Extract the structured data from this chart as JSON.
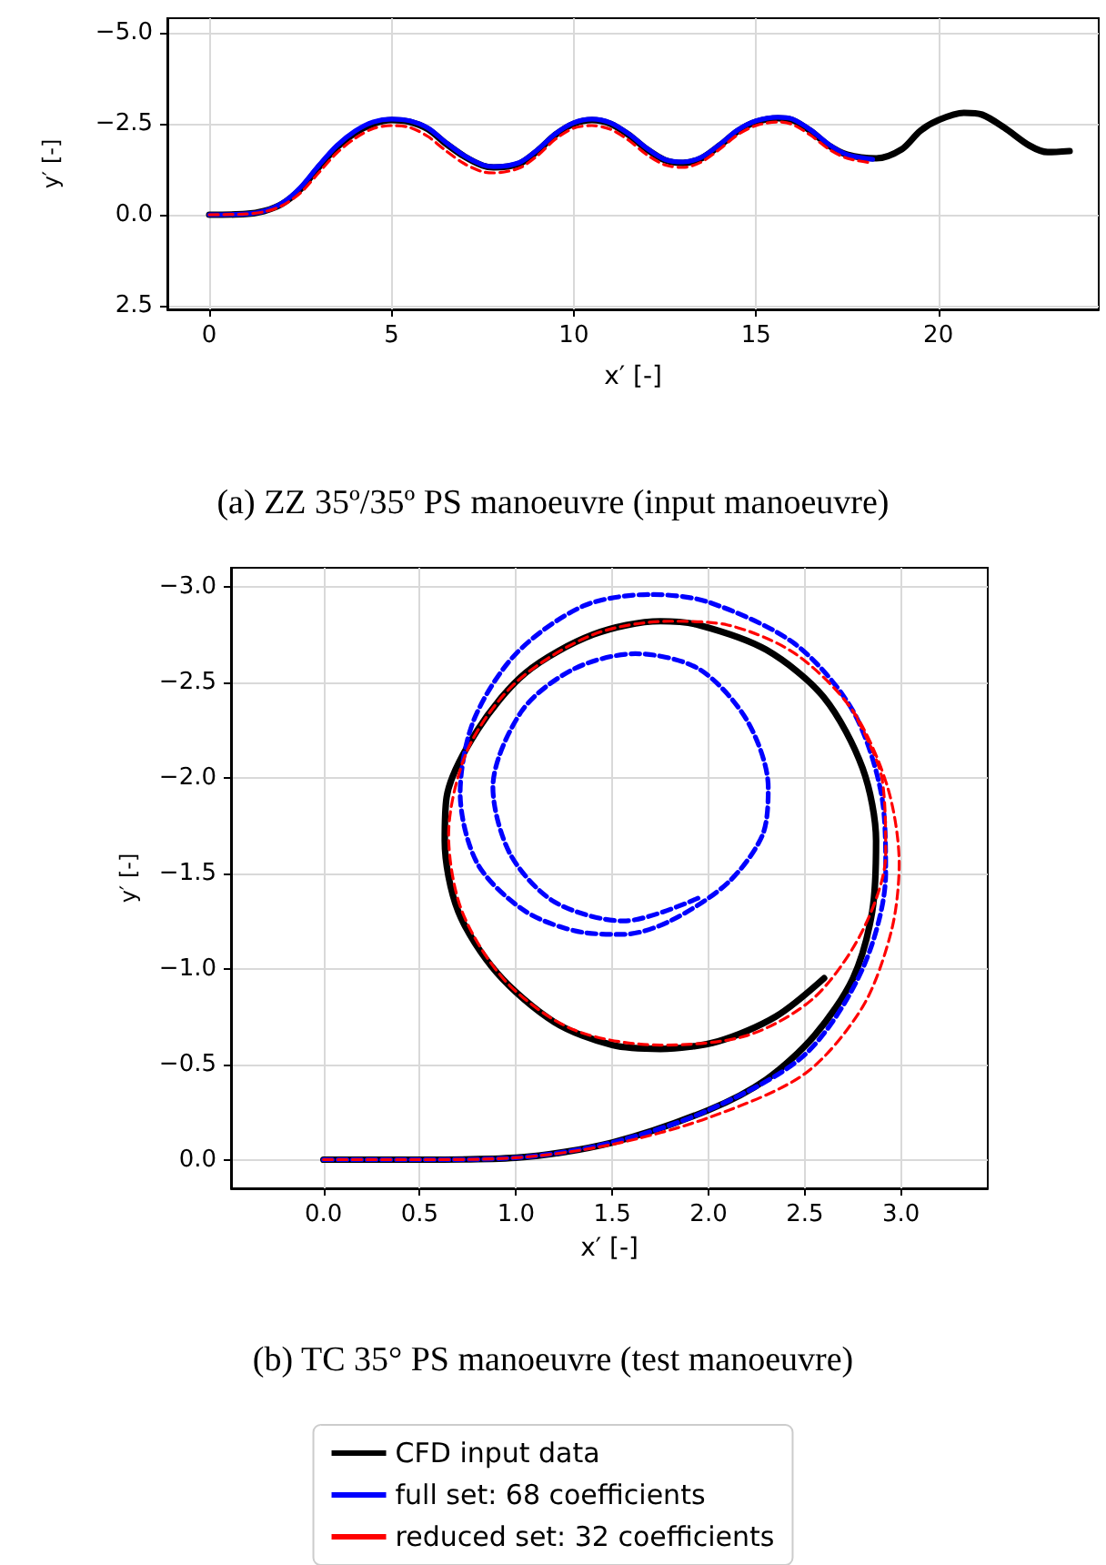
{
  "chart_data": [
    {
      "type": "line",
      "title": "(a) ZZ 35º/35º PS manoeuvre (input manoeuvre)",
      "xlabel": "x′ [-]",
      "ylabel": "y′ [-]",
      "xlim": [
        -1.15,
        24.4
      ],
      "ylim": [
        2.6,
        -5.4
      ],
      "xticks": [
        0,
        5,
        10,
        15,
        20
      ],
      "yticks": [
        {
          "value": 2.5,
          "label": "2.5"
        },
        {
          "value": 0,
          "label": "0.0"
        },
        {
          "value": -2.5,
          "label": "−2.5"
        },
        {
          "value": -5,
          "label": "−5.0"
        }
      ],
      "grid": true,
      "legend": false,
      "series": [
        {
          "color": "#000000",
          "line_style": "solid",
          "x": [
            0,
            1,
            1.5,
            2,
            2.5,
            3,
            3.5,
            4,
            4.5,
            5,
            5.5,
            6,
            6.5,
            7,
            7.5,
            7.8,
            8.5,
            9,
            9.5,
            10,
            10.5,
            11,
            11.5,
            12,
            12.5,
            13,
            13.5,
            14,
            14.5,
            15,
            15.6,
            16,
            16.5,
            17,
            17.5,
            18.3,
            19,
            19.5,
            20,
            20.7,
            21.2,
            21.8,
            22.5,
            23,
            23.6
          ],
          "values": [
            0,
            -0.02,
            -0.1,
            -0.3,
            -0.7,
            -1.3,
            -1.85,
            -2.25,
            -2.5,
            -2.6,
            -2.55,
            -2.35,
            -1.95,
            -1.6,
            -1.35,
            -1.3,
            -1.4,
            -1.75,
            -2.2,
            -2.5,
            -2.6,
            -2.5,
            -2.2,
            -1.8,
            -1.5,
            -1.42,
            -1.55,
            -1.9,
            -2.3,
            -2.55,
            -2.65,
            -2.6,
            -2.3,
            -1.9,
            -1.65,
            -1.55,
            -1.8,
            -2.3,
            -2.6,
            -2.8,
            -2.75,
            -2.4,
            -1.9,
            -1.72,
            -1.75
          ]
        },
        {
          "color": "#0000ff",
          "line_style": "solid",
          "x": [
            0,
            1,
            1.5,
            2,
            2.5,
            3,
            3.5,
            4,
            4.5,
            5,
            5.5,
            6,
            6.5,
            7,
            7.5,
            7.8,
            8.5,
            9,
            9.5,
            10,
            10.5,
            11,
            11.5,
            12,
            12.5,
            13,
            13.5,
            14,
            14.5,
            15,
            15.6,
            16,
            16.5,
            17,
            17.5,
            18.2
          ],
          "values": [
            0,
            -0.02,
            -0.1,
            -0.32,
            -0.75,
            -1.35,
            -1.9,
            -2.3,
            -2.55,
            -2.63,
            -2.58,
            -2.38,
            -1.98,
            -1.62,
            -1.37,
            -1.32,
            -1.43,
            -1.78,
            -2.23,
            -2.53,
            -2.63,
            -2.53,
            -2.23,
            -1.83,
            -1.52,
            -1.45,
            -1.58,
            -1.93,
            -2.33,
            -2.58,
            -2.68,
            -2.63,
            -2.33,
            -1.93,
            -1.65,
            -1.52
          ]
        },
        {
          "color": "#ff0000",
          "line_style": "dashed",
          "x": [
            0,
            1,
            1.5,
            2,
            2.5,
            3,
            3.5,
            4,
            4.5,
            5,
            5.5,
            6,
            6.5,
            7,
            7.5,
            7.8,
            8.5,
            9,
            9.5,
            10,
            10.5,
            11,
            11.5,
            12,
            12.5,
            13,
            13.5,
            14,
            14.5,
            15,
            15.6,
            16,
            16.5,
            17,
            17.5,
            18.2
          ],
          "values": [
            0,
            -0.02,
            -0.08,
            -0.25,
            -0.6,
            -1.15,
            -1.7,
            -2.1,
            -2.37,
            -2.45,
            -2.4,
            -2.15,
            -1.75,
            -1.4,
            -1.18,
            -1.15,
            -1.28,
            -1.62,
            -2.08,
            -2.38,
            -2.45,
            -2.35,
            -2.05,
            -1.65,
            -1.37,
            -1.3,
            -1.45,
            -1.8,
            -2.2,
            -2.45,
            -2.55,
            -2.48,
            -2.18,
            -1.8,
            -1.55,
            -1.42
          ]
        }
      ]
    },
    {
      "type": "line",
      "title": "(b) TC 35° PS manoeuvre (test manoeuvre)",
      "xlabel": "x′ [-]",
      "ylabel": "y′ [-]",
      "xlim": [
        -0.48,
        3.45
      ],
      "ylim": [
        0.15,
        -3.1
      ],
      "xticks": [
        {
          "value": 0,
          "label": "0.0"
        },
        {
          "value": 0.5,
          "label": "0.5"
        },
        {
          "value": 1,
          "label": "1.0"
        },
        {
          "value": 1.5,
          "label": "1.5"
        },
        {
          "value": 2,
          "label": "2.0"
        },
        {
          "value": 2.5,
          "label": "2.5"
        },
        {
          "value": 3,
          "label": "3.0"
        }
      ],
      "yticks": [
        {
          "value": 0,
          "label": "0.0"
        },
        {
          "value": -0.5,
          "label": "−0.5"
        },
        {
          "value": -1,
          "label": "−1.0"
        },
        {
          "value": -1.5,
          "label": "−1.5"
        },
        {
          "value": -2,
          "label": "−2.0"
        },
        {
          "value": -2.5,
          "label": "−2.5"
        },
        {
          "value": -3,
          "label": "−3.0"
        }
      ],
      "grid": true,
      "legend": "bottom",
      "series": [
        {
          "name": "CFD input data",
          "color": "#000000",
          "line_style": "solid",
          "x": [
            0,
            0.5,
            1,
            1.5,
            2,
            2.3,
            2.55,
            2.75,
            2.85,
            2.87,
            2.8,
            2.6,
            2.3,
            1.95,
            1.75,
            1.4,
            1.05,
            0.8,
            0.64,
            0.63,
            0.7,
            0.9,
            1.2,
            1.5,
            1.75,
            2.05,
            2.35,
            2.6
          ],
          "values": [
            0,
            0,
            -0.01,
            -0.09,
            -0.26,
            -0.42,
            -0.65,
            -0.95,
            -1.3,
            -1.67,
            -2.05,
            -2.42,
            -2.67,
            -2.8,
            -2.82,
            -2.75,
            -2.55,
            -2.25,
            -1.9,
            -1.67,
            -1.3,
            -0.98,
            -0.72,
            -0.6,
            -0.58,
            -0.62,
            -0.75,
            -0.95
          ]
        },
        {
          "name": "full set: 68 coefficients",
          "color": "#0000ff",
          "line_style": "dashed",
          "x": [
            0,
            0.5,
            1,
            1.5,
            2,
            2.5,
            2.8,
            2.92,
            2.9,
            2.75,
            2.45,
            2.0,
            1.7,
            1.35,
            1.0,
            0.78,
            0.71,
            0.8,
            1.05,
            1.35,
            1.56,
            1.8,
            2.1,
            2.28,
            2.31,
            2.2,
            1.95,
            1.62,
            1.3,
            1.03,
            0.88,
            0.97,
            1.2,
            1.56,
            1.97
          ],
          "values": [
            0,
            0,
            -0.01,
            -0.09,
            -0.26,
            -0.55,
            -1.0,
            -1.5,
            -1.9,
            -2.35,
            -2.7,
            -2.92,
            -2.96,
            -2.9,
            -2.65,
            -2.3,
            -1.92,
            -1.55,
            -1.3,
            -1.19,
            -1.18,
            -1.25,
            -1.45,
            -1.7,
            -1.95,
            -2.3,
            -2.57,
            -2.65,
            -2.57,
            -2.35,
            -1.95,
            -1.6,
            -1.35,
            -1.25,
            -1.38
          ]
        },
        {
          "name": "reduced set: 32 coefficients",
          "color": "#ff0000",
          "line_style": "dashed",
          "x": [
            0,
            0.5,
            1,
            1.5,
            2,
            2.5,
            2.8,
            2.95,
            2.99,
            2.93,
            2.75,
            2.45,
            2.1,
            1.8,
            1.4,
            1.0,
            0.75,
            0.65,
            0.72,
            0.95,
            1.3,
            1.75,
            2.2,
            2.55,
            2.8,
            2.92,
            2.9,
            2.75
          ],
          "values": [
            0,
            0,
            -0.01,
            -0.08,
            -0.22,
            -0.45,
            -0.8,
            -1.2,
            -1.55,
            -1.95,
            -2.35,
            -2.65,
            -2.8,
            -2.82,
            -2.75,
            -2.5,
            -2.15,
            -1.7,
            -1.3,
            -0.93,
            -0.68,
            -0.6,
            -0.65,
            -0.85,
            -1.2,
            -1.6,
            -2.0,
            -2.35
          ]
        }
      ]
    }
  ]
}
